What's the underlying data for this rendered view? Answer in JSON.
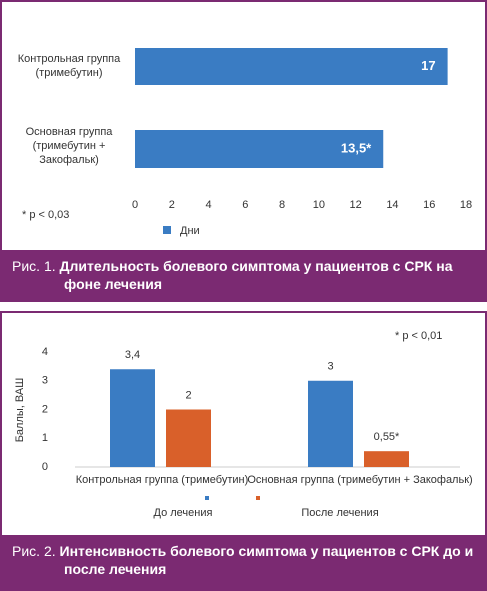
{
  "chart_data": [
    {
      "type": "hbar",
      "caption_number": "Рис. 1.",
      "title": "Длительность болевого симптома у пациентов с СРК на фоне лечения",
      "categories": [
        "Контрольная группа (тримебутин)",
        "Основная группа (тримебутин + Закофальк)"
      ],
      "series": [
        {
          "name": "Дни",
          "color": "#3a7cc3",
          "values": [
            17,
            13.5
          ],
          "value_labels": [
            "17",
            "13,5*"
          ]
        }
      ],
      "xlim": [
        0,
        18
      ],
      "xticks": [
        0,
        2,
        4,
        6,
        8,
        10,
        12,
        14,
        16,
        18
      ],
      "annotation": "* p < 0,03"
    },
    {
      "type": "bar",
      "caption_number": "Рис. 2.",
      "title": "Интенсивность болевого симптома у пациентов с СРК до и после лечения",
      "categories": [
        "Контрольная группа (тримебутин)",
        "Основная группа (тримебутин + Закофальк)"
      ],
      "series": [
        {
          "name": "До лечения",
          "color": "#3a7cc3",
          "values": [
            3.4,
            3
          ],
          "value_labels": [
            "3,4",
            "3"
          ]
        },
        {
          "name": "После лечения",
          "color": "#d9602a",
          "values": [
            2,
            0.55
          ],
          "value_labels": [
            "2",
            "0,55*"
          ]
        }
      ],
      "ylabel": "Баллы, ВАШ",
      "ylim": [
        0,
        4
      ],
      "yticks": [
        0,
        1,
        2,
        3,
        4
      ],
      "annotation": "* p < 0,01"
    }
  ]
}
